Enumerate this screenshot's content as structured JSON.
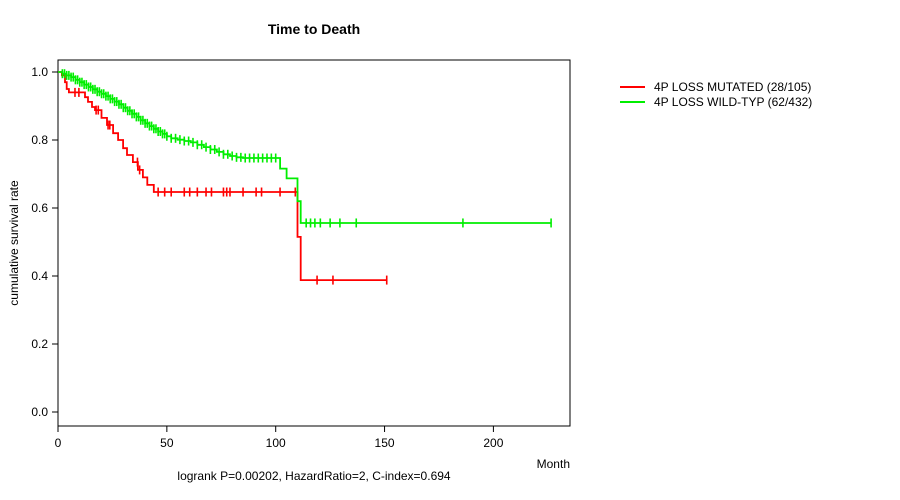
{
  "title": "Time to Death",
  "footer": "logrank P=0.00202, HazardRatio=2, C-index=0.694",
  "axes": {
    "x_label": "Month",
    "y_label": "cumulative survival rate",
    "x_ticks": [
      0,
      50,
      100,
      150,
      200
    ],
    "y_ticks": [
      "0.0",
      "0.2",
      "0.4",
      "0.6",
      "0.8",
      "1.0"
    ]
  },
  "legend": [
    {
      "label": "4P LOSS MUTATED (28/105)",
      "color": "#ff0000"
    },
    {
      "label": "4P LOSS WILD-TYP (62/432)",
      "color": "#00ee00"
    }
  ],
  "chart_data": {
    "type": "line",
    "subtype": "kaplan-meier-step-survival",
    "title": "Time to Death",
    "xlabel": "Month",
    "ylabel": "cumulative survival rate",
    "xlim": [
      0,
      235
    ],
    "ylim": [
      0,
      1.04
    ],
    "grid": false,
    "legend_position": "right-outside",
    "annotation": "logrank P=0.00202, HazardRatio=2, C-index=0.694",
    "series": [
      {
        "id": "mutated",
        "name": "4P LOSS MUTATED (28/105)",
        "events": 28,
        "n": 105,
        "color": "#ff0000",
        "steps": [
          [
            0,
            1.0
          ],
          [
            1.8,
            0.99
          ],
          [
            3.2,
            0.97
          ],
          [
            4,
            0.95
          ],
          [
            5,
            0.94
          ],
          [
            12.4,
            0.926
          ],
          [
            13.8,
            0.912
          ],
          [
            15.6,
            0.897
          ],
          [
            17,
            0.888
          ],
          [
            20,
            0.865
          ],
          [
            22.5,
            0.844
          ],
          [
            25.3,
            0.82
          ],
          [
            27.6,
            0.8
          ],
          [
            29.9,
            0.776
          ],
          [
            31.7,
            0.756
          ],
          [
            34.4,
            0.735
          ],
          [
            36.7,
            0.712
          ],
          [
            39,
            0.69
          ],
          [
            41,
            0.668
          ],
          [
            44,
            0.647
          ],
          [
            110,
            0.515
          ],
          [
            111.5,
            0.388
          ],
          [
            151,
            0.388
          ]
        ],
        "censors": [
          7.8,
          9.6,
          17.5,
          18.5,
          23,
          23.8,
          36.5,
          37.5,
          46,
          49,
          52,
          58,
          60.5,
          64,
          68,
          70.5,
          76,
          77.5,
          79,
          85,
          91,
          93.5,
          102,
          109,
          119,
          126.3,
          151
        ]
      },
      {
        "id": "wildtype",
        "name": "4P LOSS WILD-TYP (62/432)",
        "events": 62,
        "n": 432,
        "color": "#00ee00",
        "steps": [
          [
            0,
            1.0
          ],
          [
            2,
            0.995
          ],
          [
            4,
            0.99
          ],
          [
            6,
            0.985
          ],
          [
            8,
            0.977
          ],
          [
            10,
            0.97
          ],
          [
            12,
            0.963
          ],
          [
            14,
            0.956
          ],
          [
            16,
            0.949
          ],
          [
            18,
            0.942
          ],
          [
            20,
            0.936
          ],
          [
            22,
            0.929
          ],
          [
            24,
            0.921
          ],
          [
            26,
            0.913
          ],
          [
            28,
            0.905
          ],
          [
            30,
            0.895
          ],
          [
            32,
            0.886
          ],
          [
            34,
            0.877
          ],
          [
            36,
            0.868
          ],
          [
            38,
            0.858
          ],
          [
            40,
            0.849
          ],
          [
            42,
            0.841
          ],
          [
            44,
            0.833
          ],
          [
            46,
            0.825
          ],
          [
            48,
            0.818
          ],
          [
            50,
            0.811
          ],
          [
            52,
            0.805
          ],
          [
            55,
            0.801
          ],
          [
            58,
            0.797
          ],
          [
            61,
            0.793
          ],
          [
            64,
            0.786
          ],
          [
            67,
            0.779
          ],
          [
            70,
            0.772
          ],
          [
            73,
            0.765
          ],
          [
            76,
            0.758
          ],
          [
            79,
            0.753
          ],
          [
            82,
            0.749
          ],
          [
            85,
            0.747
          ],
          [
            102,
            0.716
          ],
          [
            105,
            0.687
          ],
          [
            110,
            0.62
          ],
          [
            111.5,
            0.556
          ],
          [
            226.5,
            0.556
          ]
        ],
        "censors": [
          2,
          3,
          4,
          5,
          6,
          7,
          8,
          9,
          10,
          11,
          12,
          13,
          14,
          15,
          16,
          17,
          18,
          19,
          20,
          21,
          22,
          23,
          24,
          25,
          26,
          27,
          28,
          29,
          30,
          31,
          32,
          33,
          34,
          35,
          36,
          37,
          38,
          39,
          40,
          41,
          42,
          43,
          44,
          45,
          46,
          47,
          48,
          49,
          50,
          52,
          54,
          56,
          58,
          60,
          62,
          64,
          66,
          68,
          70,
          72,
          74,
          76,
          78,
          80,
          82,
          84,
          86,
          88,
          90,
          92,
          94,
          96,
          98,
          100,
          114,
          116,
          118,
          120.5,
          125,
          129.5,
          137,
          186,
          226.5
        ]
      }
    ]
  }
}
